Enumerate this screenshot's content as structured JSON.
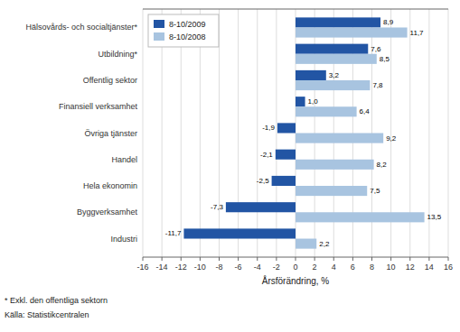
{
  "chart_data": {
    "type": "bar",
    "orientation": "horizontal",
    "categories": [
      "Industri",
      "Byggverksamhet",
      "Hela ekonomin",
      "Handel",
      "Övriga tjänster",
      "Finansiell verksamhet",
      "Offentlig sektor",
      "Utbildning*",
      "Hälsovårds- och socialtjänster*"
    ],
    "series": [
      {
        "name": "8-10/2009",
        "color": "#2255A4",
        "values": [
          -11.7,
          -7.3,
          -2.5,
          -2.1,
          -1.9,
          1.0,
          3.2,
          7.6,
          8.9
        ],
        "value_labels": [
          "-11,7",
          "-7,3",
          "-2,5",
          "-2,1",
          "-1,9",
          "1,0",
          "3,2",
          "7,6",
          "8,9"
        ]
      },
      {
        "name": "8-10/2008",
        "color": "#A8C4E0",
        "values": [
          2.2,
          13.5,
          7.5,
          8.2,
          9.2,
          6.4,
          7.8,
          8.5,
          11.7
        ],
        "value_labels": [
          "2,2",
          "13,5",
          "7,5",
          "8,2",
          "9,2",
          "6,4",
          "7,8",
          "8,5",
          "11,7"
        ]
      }
    ],
    "xlabel": "Årsförändring, %",
    "xlim": [
      -16,
      16
    ],
    "xticks": [
      -16,
      -14,
      -12,
      -10,
      -8,
      -6,
      -4,
      -2,
      0,
      2,
      4,
      6,
      8,
      10,
      12,
      14,
      16
    ],
    "grid": true,
    "legend": "upper left",
    "data_labels": true,
    "annotations": [
      "* Exkl. den offentliga sektorn",
      "Källa: Statistikcentralen"
    ]
  }
}
